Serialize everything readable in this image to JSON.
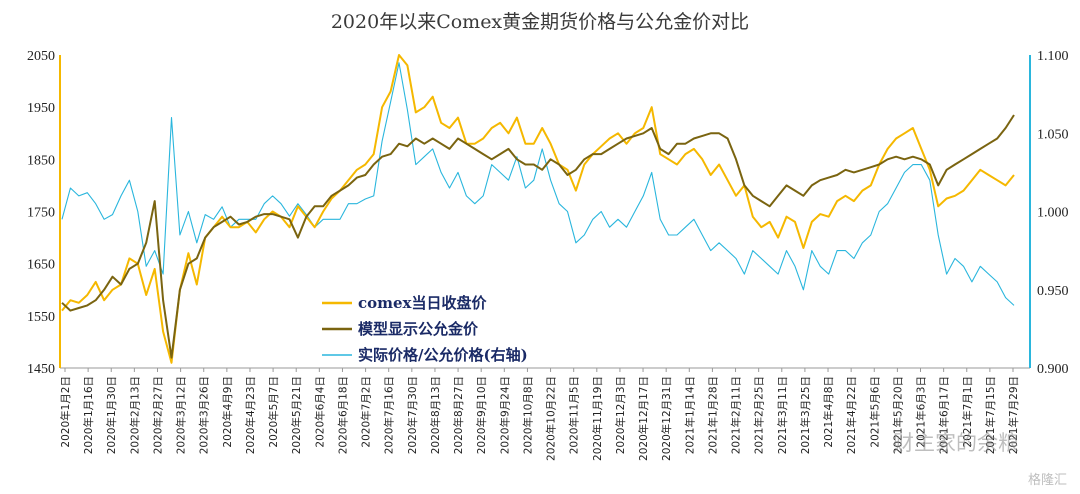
{
  "chart_data": {
    "type": "line",
    "title": "2020年以来Comex黄金期货价格与公允金价对比",
    "y_left": {
      "range": [
        1450,
        2050
      ],
      "ticks": [
        "1450",
        "1550",
        "1650",
        "1750",
        "1850",
        "1950",
        "2050"
      ]
    },
    "y_right": {
      "range": [
        0.9,
        1.1
      ],
      "ticks": [
        "0.900",
        "0.950",
        "1.000",
        "1.050",
        "1.100"
      ]
    },
    "x_tick_labels": [
      "2020年1月2日",
      "2020年1月16日",
      "2020年1月30日",
      "2020年2月13日",
      "2020年2月27日",
      "2020年3月12日",
      "2020年3月26日",
      "2020年4月9日",
      "2020年4月23日",
      "2020年5月7日",
      "2020年5月21日",
      "2020年6月4日",
      "2020年6月18日",
      "2020年7月2日",
      "2020年7月16日",
      "2020年7月30日",
      "2020年8月13日",
      "2020年8月27日",
      "2020年9月10日",
      "2020年9月24日",
      "2020年10月8日",
      "2020年10月22日",
      "2020年11月5日",
      "2020年11月19日",
      "2020年12月3日",
      "2020年12月17日",
      "2020年12月31日",
      "2021年1月14日",
      "2021年1月28日",
      "2021年2月11日",
      "2021年2月25日",
      "2021年3月11日",
      "2021年3月25日",
      "2021年4月8日",
      "2021年4月22日",
      "2021年5月6日",
      "2021年5月20日",
      "2021年6月3日",
      "2021年6月17日",
      "2021年7月1日",
      "2021年7月15日",
      "2021年7月29日"
    ],
    "legend_position": "center-left",
    "series": [
      {
        "name": "comex当日收盘价",
        "axis": "left",
        "color": "#f5b800",
        "values": [
          1560,
          1580,
          1575,
          1590,
          1615,
          1580,
          1600,
          1610,
          1660,
          1650,
          1590,
          1640,
          1520,
          1460,
          1600,
          1670,
          1610,
          1700,
          1720,
          1740,
          1720,
          1720,
          1730,
          1710,
          1735,
          1750,
          1740,
          1720,
          1760,
          1740,
          1720,
          1750,
          1775,
          1790,
          1810,
          1830,
          1840,
          1860,
          1950,
          1980,
          2060,
          2030,
          1940,
          1950,
          1970,
          1920,
          1910,
          1930,
          1880,
          1880,
          1890,
          1910,
          1920,
          1900,
          1930,
          1880,
          1880,
          1910,
          1880,
          1840,
          1830,
          1790,
          1840,
          1860,
          1875,
          1890,
          1900,
          1880,
          1900,
          1910,
          1950,
          1860,
          1850,
          1840,
          1860,
          1870,
          1850,
          1820,
          1840,
          1810,
          1780,
          1800,
          1740,
          1720,
          1730,
          1700,
          1740,
          1730,
          1680,
          1730,
          1745,
          1740,
          1770,
          1780,
          1770,
          1790,
          1800,
          1840,
          1870,
          1890,
          1900,
          1910,
          1870,
          1830,
          1760,
          1775,
          1780,
          1790,
          1810,
          1830,
          1820,
          1810,
          1800,
          1820
        ]
      },
      {
        "name": "模型显示公允金价",
        "axis": "left",
        "color": "#7a6410",
        "values": [
          1575,
          1560,
          1565,
          1570,
          1580,
          1600,
          1625,
          1610,
          1640,
          1650,
          1690,
          1770,
          1580,
          1470,
          1600,
          1650,
          1660,
          1700,
          1720,
          1730,
          1740,
          1725,
          1730,
          1740,
          1745,
          1745,
          1740,
          1735,
          1700,
          1740,
          1760,
          1760,
          1780,
          1790,
          1800,
          1815,
          1820,
          1840,
          1855,
          1860,
          1880,
          1875,
          1890,
          1880,
          1890,
          1880,
          1870,
          1890,
          1880,
          1870,
          1860,
          1850,
          1860,
          1870,
          1850,
          1840,
          1840,
          1830,
          1850,
          1840,
          1820,
          1830,
          1850,
          1860,
          1860,
          1870,
          1880,
          1890,
          1895,
          1900,
          1910,
          1870,
          1860,
          1880,
          1880,
          1890,
          1895,
          1900,
          1900,
          1890,
          1850,
          1800,
          1780,
          1770,
          1760,
          1780,
          1800,
          1790,
          1780,
          1800,
          1810,
          1815,
          1820,
          1830,
          1825,
          1830,
          1835,
          1840,
          1850,
          1855,
          1850,
          1855,
          1850,
          1840,
          1800,
          1830,
          1840,
          1850,
          1860,
          1870,
          1880,
          1890,
          1910,
          1935
        ]
      },
      {
        "name": "实际价格/公允价格(右轴)",
        "axis": "right",
        "color": "#2ab6dd",
        "values": [
          0.995,
          1.015,
          1.01,
          1.012,
          1.005,
          0.995,
          0.998,
          1.01,
          1.02,
          1.0,
          0.965,
          0.975,
          0.96,
          1.06,
          0.985,
          1.0,
          0.98,
          0.998,
          0.995,
          1.003,
          0.99,
          0.995,
          0.995,
          0.995,
          1.005,
          1.01,
          1.005,
          0.997,
          1.005,
          0.998,
          0.99,
          0.995,
          0.995,
          0.995,
          1.005,
          1.005,
          1.008,
          1.01,
          1.045,
          1.07,
          1.095,
          1.065,
          1.03,
          1.035,
          1.04,
          1.025,
          1.015,
          1.025,
          1.01,
          1.005,
          1.01,
          1.03,
          1.025,
          1.02,
          1.035,
          1.015,
          1.02,
          1.04,
          1.02,
          1.005,
          1.0,
          0.98,
          0.985,
          0.995,
          1.0,
          0.99,
          0.995,
          0.99,
          1.0,
          1.01,
          1.025,
          0.995,
          0.985,
          0.985,
          0.99,
          0.995,
          0.985,
          0.975,
          0.98,
          0.975,
          0.97,
          0.96,
          0.975,
          0.97,
          0.965,
          0.96,
          0.975,
          0.965,
          0.95,
          0.975,
          0.965,
          0.96,
          0.975,
          0.975,
          0.97,
          0.98,
          0.985,
          1.0,
          1.005,
          1.015,
          1.025,
          1.03,
          1.03,
          1.02,
          0.985,
          0.96,
          0.97,
          0.965,
          0.955,
          0.965,
          0.96,
          0.955,
          0.945,
          0.94
        ]
      }
    ]
  },
  "watermark": {
    "wechat_name": "财主家的余粮",
    "brand": "格隆汇"
  }
}
